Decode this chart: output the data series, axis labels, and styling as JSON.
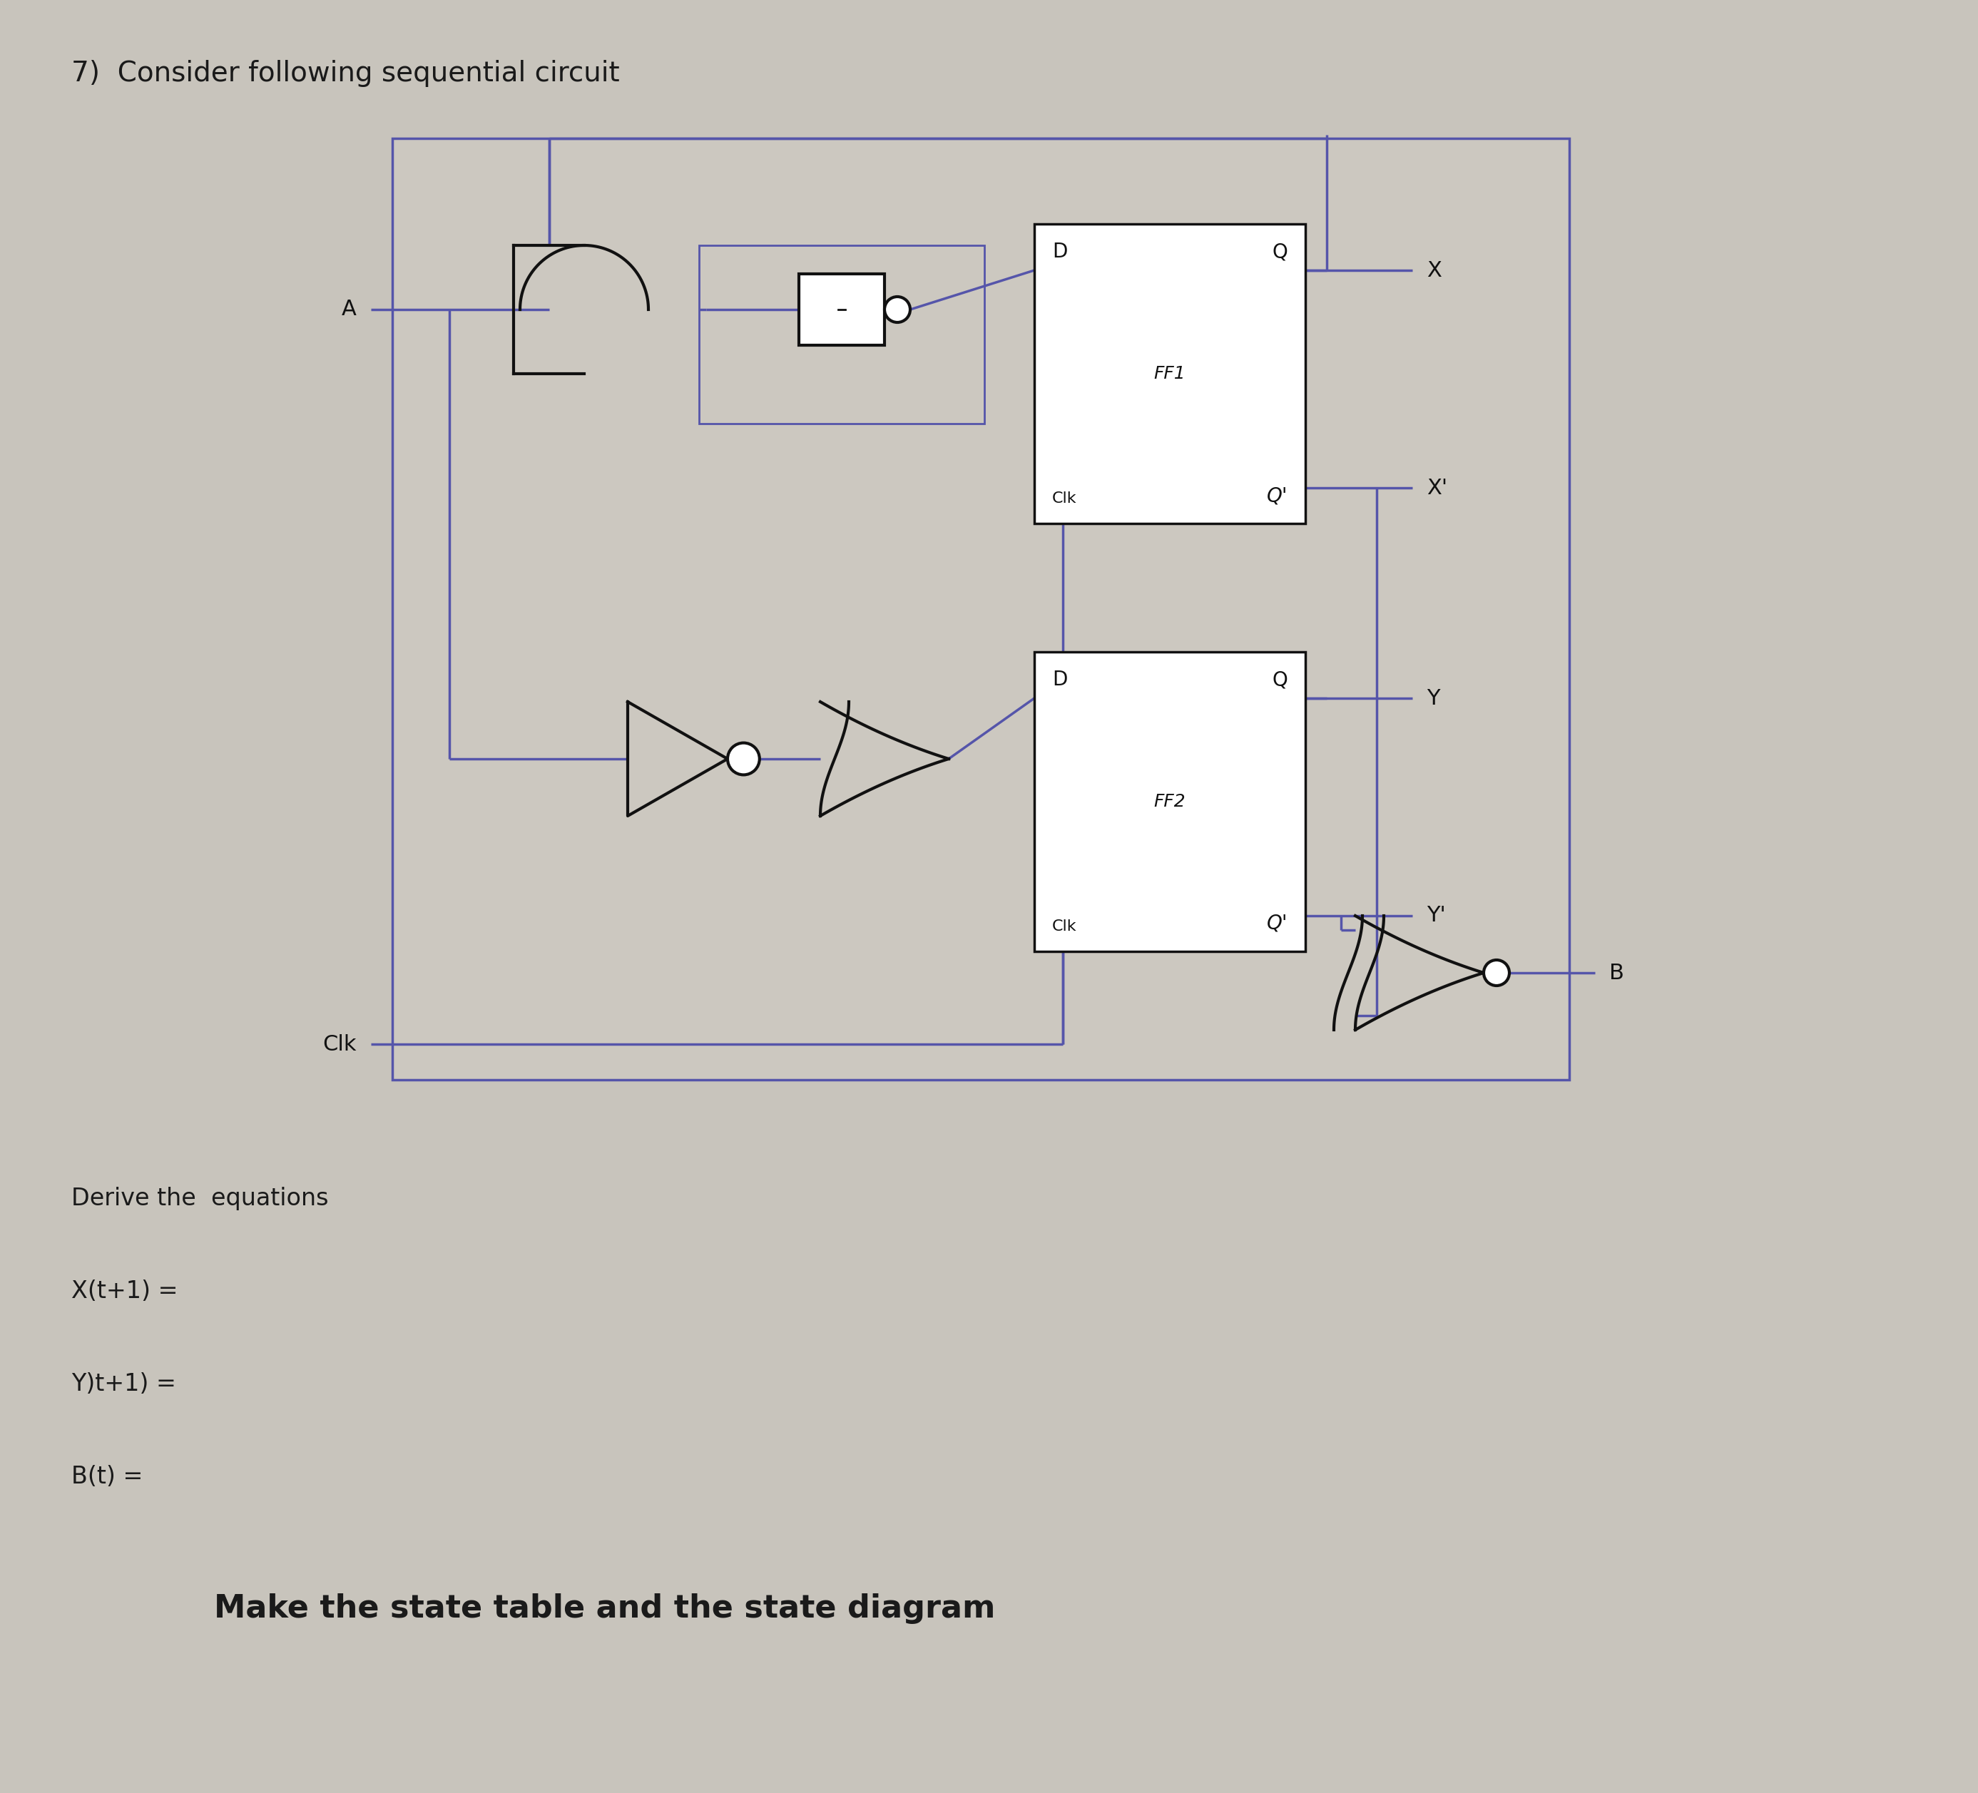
{
  "bg_color": "#c8c4bc",
  "paper_color": "#d4d0c8",
  "circuit_bg": "#ccc8c0",
  "wire_color": "#5555aa",
  "gate_color": "#111111",
  "ff_color": "#111111",
  "label_color": "#111111",
  "title": "7)  Consider following sequential circuit",
  "title_fontsize": 28,
  "derive_text": "Derive the  equations",
  "derive_fontsize": 24,
  "eq1": "X(t+1) =",
  "eq1_fontsize": 24,
  "eq2": "Y)t+1) =",
  "eq2_fontsize": 24,
  "eq3": "B(t) =",
  "eq3_fontsize": 24,
  "footer": "Make the state table and the state diagram",
  "footer_fontsize": 32
}
